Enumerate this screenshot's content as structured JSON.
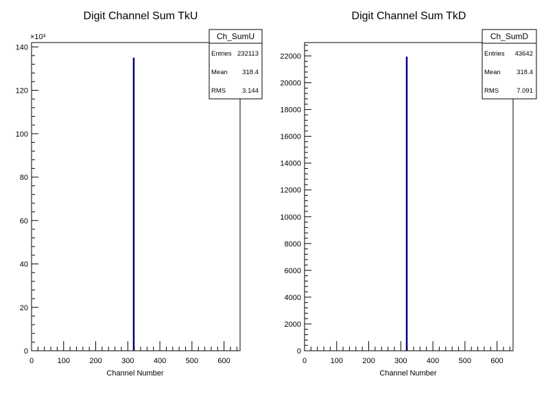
{
  "chart_data": [
    {
      "type": "bar",
      "title": "Digit Channel Sum TkU",
      "xlabel": "Channel Number",
      "ylabel": "",
      "xlim": [
        0,
        650
      ],
      "ylim": [
        0,
        142
      ],
      "y_multiplier_label": "×10³",
      "x_ticks": [
        "0",
        "100",
        "200",
        "300",
        "400",
        "500",
        "600"
      ],
      "y_ticks": [
        "0",
        "20",
        "40",
        "60",
        "80",
        "100",
        "120",
        "140"
      ],
      "bars": [
        {
          "x": 318,
          "value": 135
        }
      ],
      "bar_color": "#000080",
      "stats": {
        "name": "Ch_SumU",
        "rows": [
          {
            "label": "Entries",
            "value": "232113"
          },
          {
            "label": "Mean",
            "value": "318.4"
          },
          {
            "label": "RMS",
            "value": "3.144"
          }
        ]
      }
    },
    {
      "type": "bar",
      "title": "Digit Channel Sum TkD",
      "xlabel": "Channel Number",
      "ylabel": "",
      "xlim": [
        0,
        650
      ],
      "ylim": [
        0,
        23000
      ],
      "y_multiplier_label": "",
      "x_ticks": [
        "0",
        "100",
        "200",
        "300",
        "400",
        "500",
        "600"
      ],
      "y_ticks": [
        "0",
        "2000",
        "4000",
        "6000",
        "8000",
        "10000",
        "12000",
        "14000",
        "16000",
        "18000",
        "20000",
        "22000"
      ],
      "bars": [
        {
          "x": 318,
          "value": 21950
        }
      ],
      "bar_color": "#000080",
      "stats": {
        "name": "Ch_SumD",
        "rows": [
          {
            "label": "Entries",
            "value": "43642"
          },
          {
            "label": "Mean",
            "value": "318.4"
          },
          {
            "label": "RMS",
            "value": "7.091"
          }
        ]
      }
    }
  ]
}
